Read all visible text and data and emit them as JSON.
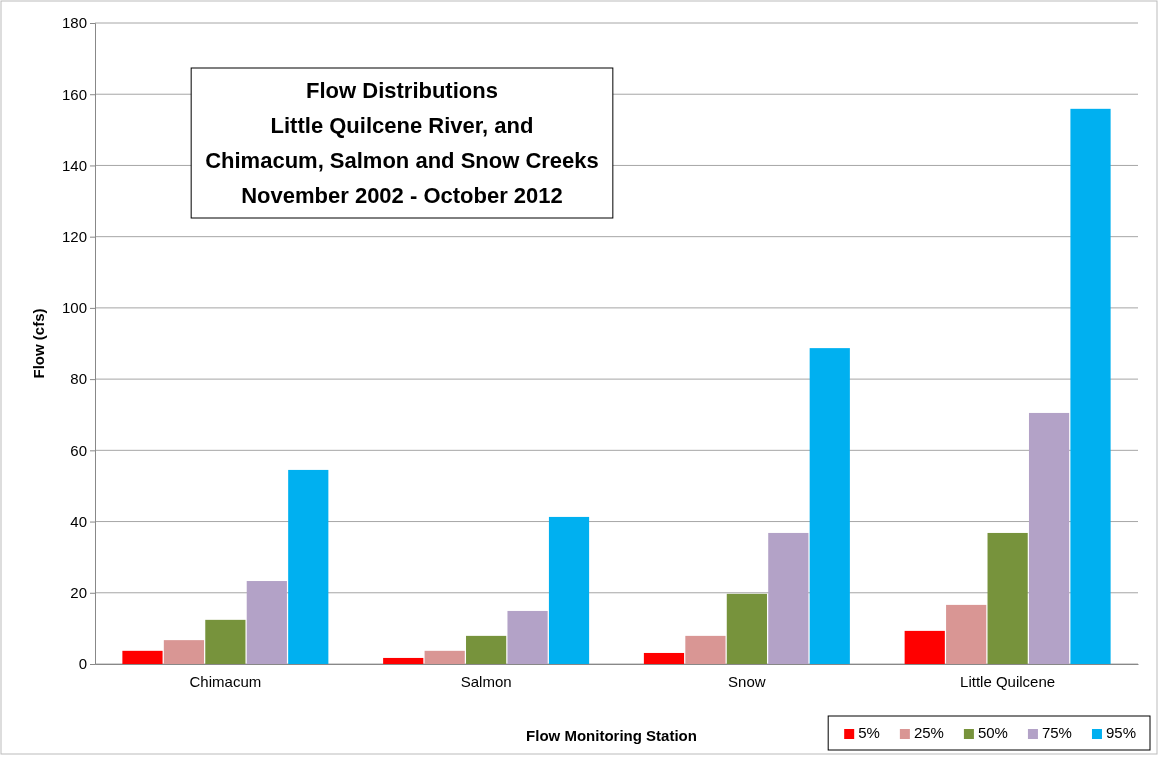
{
  "chart_data": {
    "type": "bar",
    "title": "Flow Distributions\nLittle Quilcene River, and\nChimacum, Salmon and Snow Creeks\nNovember 2002 - October 2012",
    "xlabel": "Flow Monitoring Station",
    "ylabel": "Flow (cfs)",
    "categories": [
      "Chimacum",
      "Salmon",
      "Snow",
      "Little Quilcene"
    ],
    "series": [
      {
        "name": "5%",
        "color": "#ff0000",
        "values": [
          3.7,
          1.7,
          3.1,
          9.3
        ]
      },
      {
        "name": "25%",
        "color": "#d99694",
        "values": [
          6.7,
          3.7,
          7.9,
          16.6
        ]
      },
      {
        "name": "50%",
        "color": "#77933c",
        "values": [
          12.4,
          7.9,
          19.7,
          36.8
        ]
      },
      {
        "name": "75%",
        "color": "#b3a2c7",
        "values": [
          23.3,
          14.9,
          36.8,
          70.5
        ]
      },
      {
        "name": "95%",
        "color": "#00b0f0",
        "values": [
          54.5,
          41.3,
          88.7,
          155.9
        ]
      }
    ],
    "ylim": [
      0,
      180
    ],
    "yticks": [
      0,
      20,
      40,
      60,
      80,
      100,
      120,
      140,
      160,
      180
    ],
    "grid": "y",
    "legend": "bottom right"
  }
}
